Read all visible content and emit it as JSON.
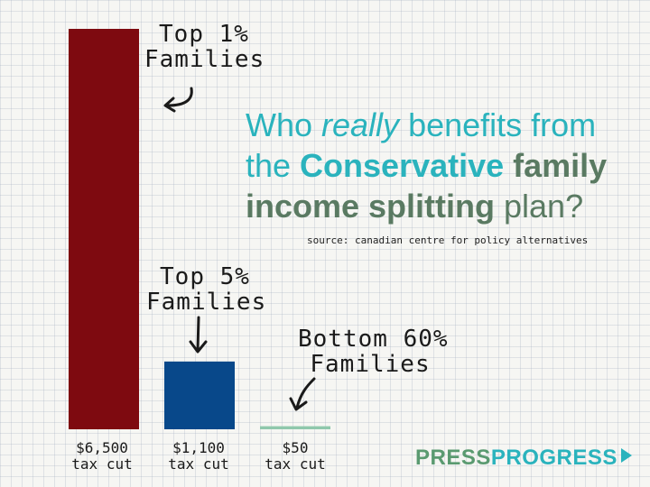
{
  "chart_data": {
    "type": "bar",
    "categories": [
      "Top 1% Families",
      "Top 5% Families",
      "Bottom 60% Families"
    ],
    "values": [
      6500,
      1100,
      50
    ],
    "tick_labels": [
      [
        "$6,500",
        "tax cut"
      ],
      [
        "$1,100",
        "tax cut"
      ],
      [
        "$50",
        "tax cut"
      ]
    ],
    "colors": [
      "#7e0a10",
      "#08488a",
      "#8fc8ac"
    ],
    "ylim": [
      0,
      6500
    ],
    "grid": true,
    "annotations": {
      "top1": [
        "Top 1%",
        "Families"
      ],
      "top5": [
        "Top 5%",
        "Families"
      ],
      "bottom60": [
        "Bottom 60%",
        "Families"
      ]
    }
  },
  "headline": {
    "l1_a": "Who ",
    "l1_b": "really",
    "l1_c": " benefits from",
    "l2_a": "the ",
    "l2_b": "Conservative",
    "l2_c": " family",
    "l3_a": "income splitting",
    "l3_b": " plan?"
  },
  "source": "source: canadian centre for policy alternatives",
  "logo": {
    "part1": "PRESS",
    "part2": "PROGRESS"
  },
  "colors": {
    "accent": "#2ab3bd",
    "green": "#5a7a62"
  }
}
